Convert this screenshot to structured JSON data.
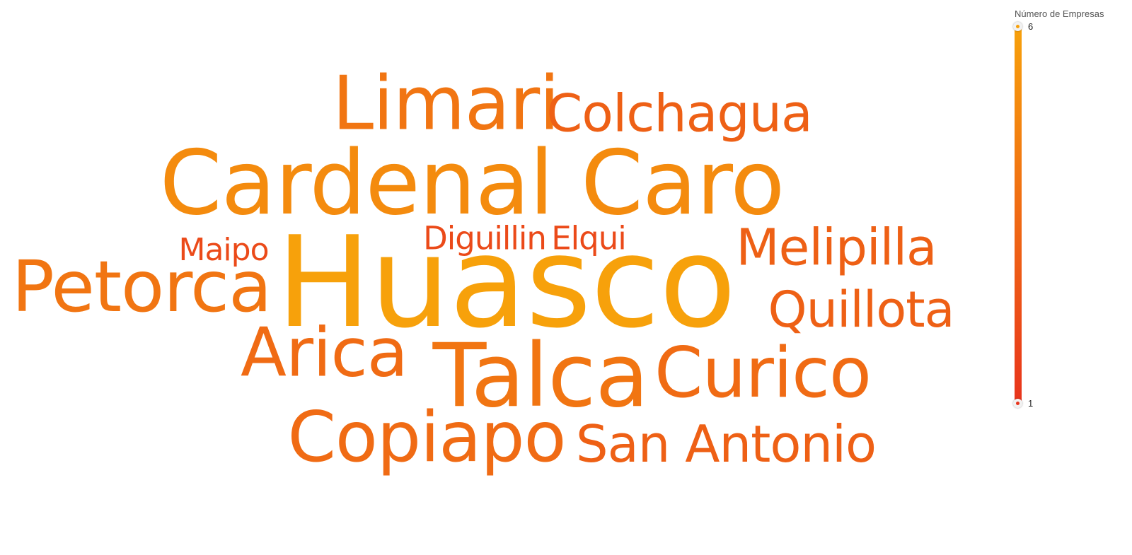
{
  "chart_data": {
    "type": "wordcloud",
    "words": [
      {
        "text": "Huasco",
        "value": 6
      },
      {
        "text": "Cardenal Caro",
        "value": 5
      },
      {
        "text": "Talca",
        "value": 4
      },
      {
        "text": "Limari",
        "value": 4
      },
      {
        "text": "Petorca",
        "value": 4
      },
      {
        "text": "Curico",
        "value": 3.5
      },
      {
        "text": "Copiapo",
        "value": 3.5
      },
      {
        "text": "Arica",
        "value": 3.5
      },
      {
        "text": "Melipilla",
        "value": 3
      },
      {
        "text": "Colchagua",
        "value": 3
      },
      {
        "text": "Quillota",
        "value": 3
      },
      {
        "text": "San Antonio",
        "value": 3
      },
      {
        "text": "Diguillin",
        "value": 2
      },
      {
        "text": "Elqui",
        "value": 2
      },
      {
        "text": "Maipo",
        "value": 2
      }
    ],
    "color_scale": {
      "title": "Número de Empresas",
      "min": 1,
      "max": 6,
      "min_color": "#e8341c",
      "max_color": "#f7a10b"
    },
    "legend_position": "right"
  }
}
